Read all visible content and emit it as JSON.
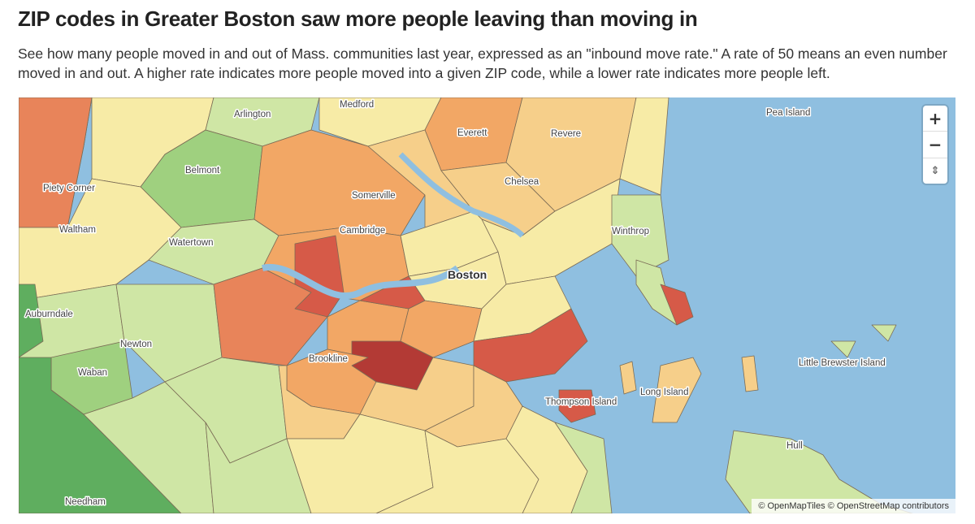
{
  "headline": "ZIP codes in Greater Boston saw more people leaving than moving in",
  "dek": "See how many people moved in and out of Mass. communities last year, expressed as an \"inbound move rate.\" A rate of 50 means an even number moved in and out. A higher rate indicates more people moved into a given ZIP code, while a lower rate indicates more people left.",
  "colors": {
    "water": "#8fbfe0",
    "dark_green": "#5fae5f",
    "green": "#9fd07f",
    "light_green": "#cfe6a5",
    "pale_yellow": "#f7eba6",
    "light_orange": "#f6cf8a",
    "orange": "#f2a765",
    "dark_orange": "#e8845a",
    "red": "#d65a48",
    "dark_red": "#b33a35"
  },
  "place_labels": [
    "Medford",
    "Arlington",
    "Everett",
    "Revere",
    "Pea Island",
    "Belmont",
    "Piety Corner",
    "Somerville",
    "Chelsea",
    "Waltham",
    "Watertown",
    "Cambridge",
    "Winthrop",
    "Boston",
    "Auburndale",
    "Newton",
    "Brookline",
    "Waban",
    "Little Brewster Island",
    "Long Island",
    "Thompson Island",
    "Hull",
    "Needham"
  ],
  "controls": {
    "zoom_in": "+",
    "zoom_out": "−",
    "reset_north": "⇕"
  },
  "attribution": "© OpenMapTiles © OpenStreetMap contributors"
}
